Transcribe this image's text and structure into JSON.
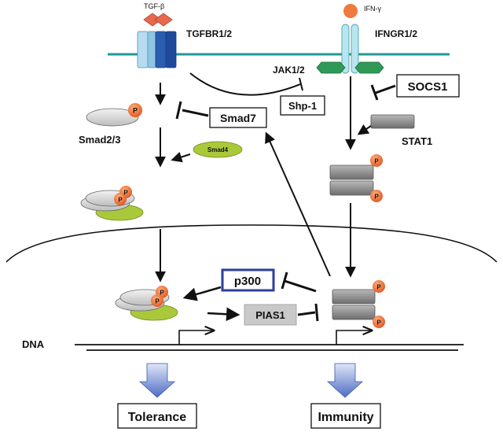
{
  "receptors": {
    "tgfb_ligand": "TGF-β",
    "tgfb_receptor": "TGFBR1/2",
    "ifng_ligand": "IFN-γ",
    "ifng_receptor": "IFNGR1/2"
  },
  "cytoplasm": {
    "jak": "JAK1/2",
    "shp1": "Shp-1",
    "socs1": "SOCS1",
    "smad7": "Smad7",
    "smad23": "Smad2/3",
    "smad4": "Smad4",
    "stat1": "STAT1"
  },
  "nucleus": {
    "p300": "p300",
    "pias1": "PIAS1",
    "dna": "DNA"
  },
  "phospho_mark": "P",
  "outcomes": {
    "tolerance": "Tolerance",
    "immunity": "Immunity"
  },
  "colors": {
    "membrane": "#1f9a93",
    "tgfbr_light": "#b5dcef",
    "tgfbr_dark": "#2a5db0",
    "ifngr": "#b9e6ee",
    "jak_green": "#2f9a57",
    "smad4_green": "#a9c93b",
    "stat_gray": "#8a8a8a",
    "phospho": "#ee6a2c",
    "p300_border": "#2b3f9e",
    "ligand_tgfb": "#e8694d",
    "ligand_ifng": "#f07a3e"
  }
}
